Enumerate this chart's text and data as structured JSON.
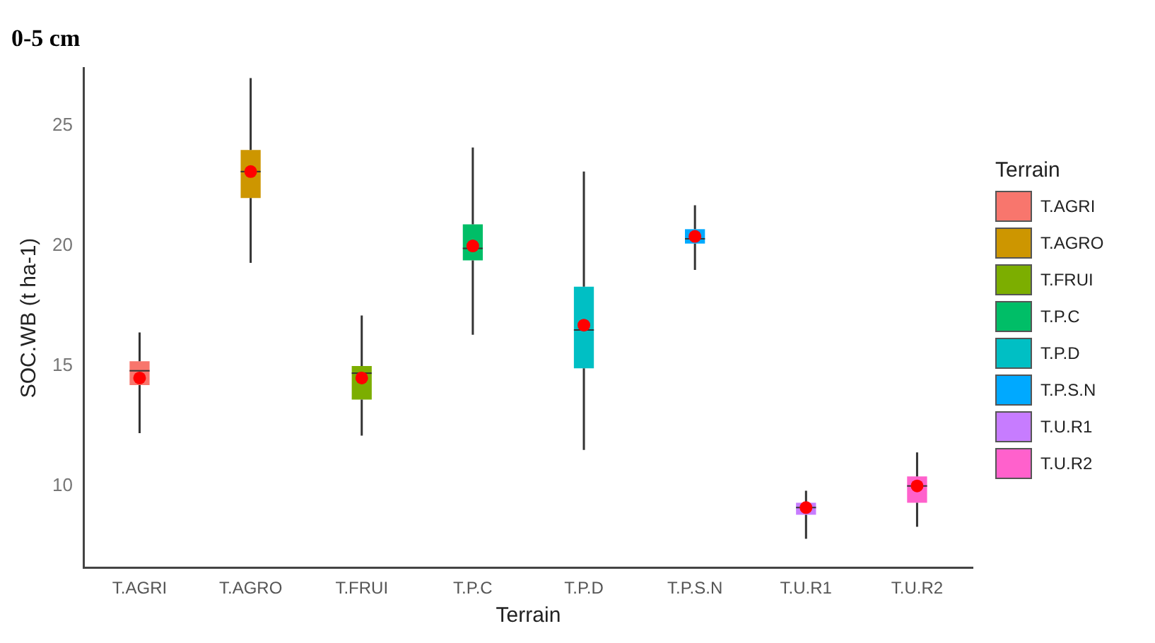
{
  "chart_data": {
    "type": "box",
    "title": "0-5 cm",
    "xlabel": "Terrain",
    "ylabel": "SOC.WB (t ha-1)",
    "legend_title": "Terrain",
    "legend": "right",
    "grid": false,
    "categories": [
      "T.AGRI",
      "T.AGRO",
      "T.FRUI",
      "T.P.C",
      "T.P.D",
      "T.P.S.N",
      "T.U.R1",
      "T.U.R2"
    ],
    "series": [
      {
        "name": "T.AGRI",
        "color": "#f8766d",
        "boxes": [
          {
            "low": 12.2,
            "q1": 14.2,
            "median": 14.8,
            "q3": 15.2,
            "high": 16.4,
            "mean": 14.5
          },
          null,
          null,
          null,
          null,
          null,
          null,
          null
        ]
      },
      {
        "name": "T.AGRO",
        "color": "#cd9600",
        "boxes": [
          null,
          {
            "low": 19.3,
            "q1": 22.0,
            "median": 23.1,
            "q3": 24.0,
            "high": 27.0,
            "mean": 23.1
          },
          null,
          null,
          null,
          null,
          null,
          null
        ]
      },
      {
        "name": "T.FRUI",
        "color": "#7cae00",
        "boxes": [
          null,
          null,
          {
            "low": 12.1,
            "q1": 13.6,
            "median": 14.7,
            "q3": 15.0,
            "high": 17.1,
            "mean": 14.5
          },
          null,
          null,
          null,
          null,
          null
        ]
      },
      {
        "name": "T.P.C",
        "color": "#00be67",
        "boxes": [
          null,
          null,
          null,
          {
            "low": 16.3,
            "q1": 19.4,
            "median": 19.9,
            "q3": 20.9,
            "high": 24.1,
            "mean": 20.0
          },
          null,
          null,
          null,
          null
        ]
      },
      {
        "name": "T.P.D",
        "color": "#00bfc4",
        "boxes": [
          null,
          null,
          null,
          null,
          {
            "low": 11.5,
            "q1": 14.9,
            "median": 16.5,
            "q3": 18.3,
            "high": 23.1,
            "mean": 16.7
          },
          null,
          null,
          null
        ]
      },
      {
        "name": "T.P.S.N",
        "color": "#00a9ff",
        "boxes": [
          null,
          null,
          null,
          null,
          null,
          {
            "low": 19.0,
            "q1": 20.1,
            "median": 20.3,
            "q3": 20.7,
            "high": 21.7,
            "mean": 20.4
          },
          null,
          null
        ]
      },
      {
        "name": "T.U.R1",
        "color": "#c77cff",
        "boxes": [
          null,
          null,
          null,
          null,
          null,
          null,
          {
            "low": 7.8,
            "q1": 8.8,
            "median": 9.1,
            "q3": 9.3,
            "high": 9.8,
            "mean": 9.1
          },
          null
        ]
      },
      {
        "name": "T.U.R2",
        "color": "#ff61cc",
        "boxes": [
          null,
          null,
          null,
          null,
          null,
          null,
          null,
          {
            "low": 8.3,
            "q1": 9.3,
            "median": 10.0,
            "q3": 10.4,
            "high": 11.4,
            "mean": 10.0
          }
        ]
      }
    ],
    "ylim": [
      6.6,
      27.4
    ],
    "yticks": [
      10,
      15,
      20,
      25
    ]
  }
}
